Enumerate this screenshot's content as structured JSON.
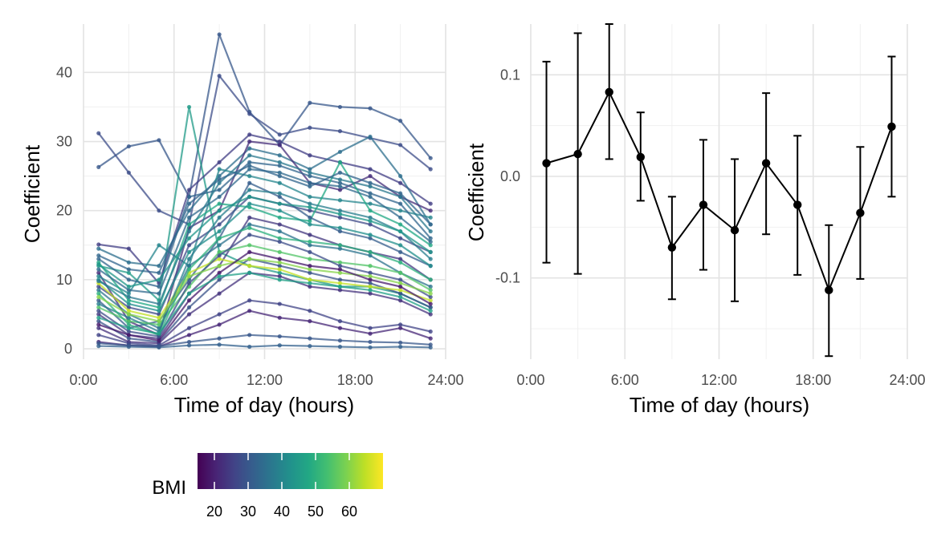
{
  "chart_data": [
    {
      "type": "line",
      "title": "",
      "xlabel": "Time of day (hours)",
      "ylabel": "Coefficient",
      "xlim": [
        0,
        24
      ],
      "ylim": [
        -1.5,
        47
      ],
      "xticks": [
        0,
        6,
        12,
        18,
        24
      ],
      "xtick_labels": [
        "0:00",
        "6:00",
        "12:00",
        "18:00",
        "24:00"
      ],
      "yticks": [
        0,
        10,
        20,
        30,
        40
      ],
      "ytick_labels": [
        "0",
        "10",
        "20",
        "30",
        "40"
      ],
      "x": [
        1,
        3,
        5,
        7,
        9,
        11,
        13,
        15,
        17,
        19,
        21,
        23
      ],
      "grid": true,
      "color_scale": "viridis",
      "color_variable": "BMI",
      "legend_position": "bottom",
      "legend": {
        "title": "BMI",
        "range": [
          15,
          70
        ],
        "ticks": [
          20,
          30,
          40,
          50,
          60
        ],
        "tick_labels": [
          "20",
          "30",
          "40",
          "50",
          "60"
        ]
      },
      "series": [
        {
          "bmi": 30,
          "values": [
            26.3,
            29.3,
            30.2,
            22.0,
            45.5,
            34.3,
            29.5,
            35.6,
            35.0,
            34.8,
            33.0,
            27.6
          ]
        },
        {
          "bmi": 28,
          "values": [
            31.2,
            25.5,
            20.0,
            18.0,
            39.5,
            34.0,
            31.0,
            32.0,
            31.5,
            30.5,
            29.5,
            26.0
          ]
        },
        {
          "bmi": 45,
          "values": [
            12.0,
            11.0,
            7.0,
            35.0,
            14.0,
            12.0,
            11.0,
            10.0,
            9.0,
            9.0,
            8.0,
            6.0
          ]
        },
        {
          "bmi": 25,
          "values": [
            15.1,
            14.5,
            9.5,
            23.0,
            27.0,
            31.0,
            30.0,
            28.0,
            27.0,
            26.0,
            24.0,
            21.0
          ]
        },
        {
          "bmi": 35,
          "values": [
            14.5,
            12.5,
            12.0,
            20.0,
            25.0,
            29.0,
            28.0,
            26.0,
            28.5,
            30.7,
            25.0,
            18.0
          ]
        },
        {
          "bmi": 22,
          "values": [
            11.0,
            4.0,
            2.0,
            17.5,
            20.0,
            30.0,
            29.5,
            24.0,
            23.0,
            25.0,
            22.0,
            20.0
          ]
        },
        {
          "bmi": 40,
          "values": [
            10.5,
            8.0,
            15.0,
            12.0,
            26.0,
            25.0,
            24.0,
            22.0,
            21.5,
            21.0,
            20.0,
            19.0
          ]
        },
        {
          "bmi": 33,
          "values": [
            13.0,
            10.0,
            9.0,
            22.0,
            23.0,
            27.0,
            26.5,
            25.0,
            24.0,
            22.5,
            21.0,
            16.0
          ]
        },
        {
          "bmi": 27,
          "values": [
            9.0,
            6.0,
            5.0,
            15.0,
            18.0,
            22.0,
            21.0,
            20.0,
            19.0,
            18.0,
            16.0,
            14.0
          ]
        },
        {
          "bmi": 48,
          "values": [
            12.5,
            7.0,
            6.0,
            18.0,
            21.0,
            20.5,
            19.0,
            18.5,
            27.0,
            20.0,
            18.0,
            15.0
          ]
        },
        {
          "bmi": 31,
          "values": [
            7.0,
            3.0,
            4.0,
            10.0,
            16.0,
            24.0,
            22.0,
            19.0,
            17.0,
            16.0,
            14.0,
            12.0
          ]
        },
        {
          "bmi": 24,
          "values": [
            5.0,
            2.0,
            1.5,
            8.0,
            12.0,
            19.0,
            18.0,
            16.5,
            15.0,
            14.0,
            13.0,
            10.0
          ]
        },
        {
          "bmi": 36,
          "values": [
            8.5,
            5.0,
            3.0,
            12.0,
            15.0,
            18.0,
            17.0,
            15.0,
            14.5,
            13.5,
            11.0,
            9.0
          ]
        },
        {
          "bmi": 55,
          "values": [
            6.0,
            4.0,
            3.5,
            9.0,
            14.0,
            15.0,
            14.0,
            13.0,
            12.5,
            12.0,
            11.0,
            8.5
          ]
        },
        {
          "bmi": 29,
          "values": [
            4.0,
            1.5,
            1.0,
            6.0,
            10.0,
            13.0,
            12.0,
            11.0,
            10.0,
            9.5,
            8.0,
            6.0
          ]
        },
        {
          "bmi": 23,
          "values": [
            3.0,
            1.0,
            0.8,
            5.0,
            8.0,
            11.0,
            10.5,
            9.0,
            8.5,
            8.0,
            7.0,
            5.0
          ]
        },
        {
          "bmi": 42,
          "values": [
            10.0,
            6.5,
            5.5,
            14.0,
            17.0,
            21.0,
            20.0,
            18.0,
            17.5,
            16.5,
            15.0,
            12.0
          ]
        },
        {
          "bmi": 65,
          "values": [
            9.5,
            5.5,
            4.5,
            11.0,
            13.0,
            12.0,
            11.5,
            10.0,
            9.5,
            9.0,
            8.5,
            7.0
          ]
        },
        {
          "bmi": 26,
          "values": [
            2.0,
            0.8,
            0.5,
            3.0,
            5.0,
            7.0,
            6.5,
            5.5,
            4.0,
            3.0,
            3.5,
            2.5
          ]
        },
        {
          "bmi": 34,
          "values": [
            11.5,
            8.5,
            8.0,
            19.0,
            22.0,
            26.0,
            25.5,
            24.0,
            23.5,
            22.0,
            19.0,
            15.5
          ]
        },
        {
          "bmi": 21,
          "values": [
            1.0,
            0.5,
            0.3,
            2.0,
            3.5,
            5.5,
            4.5,
            4.0,
            3.0,
            2.2,
            3.0,
            1.5
          ]
        },
        {
          "bmi": 38,
          "values": [
            6.5,
            4.5,
            2.5,
            13.0,
            19.0,
            23.0,
            22.5,
            21.0,
            20.0,
            19.0,
            17.0,
            13.0
          ]
        },
        {
          "bmi": 50,
          "values": [
            8.0,
            3.5,
            2.0,
            11.5,
            16.0,
            17.5,
            16.0,
            15.5,
            15.0,
            14.0,
            12.5,
            10.0
          ]
        },
        {
          "bmi": 32,
          "values": [
            0.4,
            0.3,
            0.2,
            0.5,
            0.6,
            0.3,
            0.5,
            0.4,
            0.3,
            0.2,
            0.3,
            0.2
          ]
        },
        {
          "bmi": 28,
          "values": [
            5.5,
            2.5,
            1.8,
            9.5,
            13.5,
            16.5,
            15.5,
            14.0,
            12.0,
            11.0,
            10.0,
            7.5
          ]
        },
        {
          "bmi": 44,
          "values": [
            12.2,
            9.0,
            10.0,
            16.0,
            20.0,
            22.0,
            21.0,
            20.5,
            19.5,
            18.5,
            17.0,
            14.0
          ]
        },
        {
          "bmi": 60,
          "values": [
            7.5,
            5.0,
            4.0,
            10.5,
            12.0,
            13.0,
            12.5,
            11.5,
            11.0,
            10.5,
            9.5,
            8.0
          ]
        },
        {
          "bmi": 37,
          "values": [
            9.8,
            7.5,
            6.5,
            17.0,
            24.0,
            28.0,
            27.0,
            25.5,
            24.5,
            23.5,
            22.0,
            17.0
          ]
        },
        {
          "bmi": 19,
          "values": [
            3.5,
            2.0,
            1.2,
            7.0,
            11.0,
            14.0,
            13.0,
            12.0,
            11.5,
            10.0,
            9.0,
            6.5
          ]
        },
        {
          "bmi": 46,
          "values": [
            4.5,
            3.0,
            2.2,
            8.0,
            10.5,
            11.0,
            10.0,
            9.5,
            9.0,
            8.5,
            7.5,
            5.5
          ]
        },
        {
          "bmi": 30,
          "values": [
            0.8,
            0.5,
            0.4,
            1.0,
            1.5,
            2.0,
            1.8,
            1.5,
            1.2,
            1.0,
            0.9,
            0.6
          ]
        },
        {
          "bmi": 33,
          "values": [
            13.5,
            11.5,
            11.0,
            21.0,
            24.5,
            26.5,
            25.0,
            23.5,
            25.5,
            24.0,
            22.5,
            18.0
          ]
        }
      ]
    },
    {
      "type": "line",
      "title": "",
      "xlabel": "Time of day (hours)",
      "ylabel": "Coefficient",
      "xlim": [
        0,
        24
      ],
      "ylim": [
        -0.18,
        0.15
      ],
      "xticks": [
        0,
        6,
        12,
        18,
        24
      ],
      "xtick_labels": [
        "0:00",
        "6:00",
        "12:00",
        "18:00",
        "24:00"
      ],
      "yticks": [
        -0.1,
        0.0,
        0.1
      ],
      "ytick_labels": [
        "-0.1",
        "0.0",
        "0.1"
      ],
      "grid": true,
      "error_bars": true,
      "x": [
        1,
        3,
        5,
        7,
        9,
        11,
        13,
        15,
        17,
        19,
        21,
        23
      ],
      "values": [
        0.013,
        0.022,
        0.083,
        0.019,
        -0.07,
        -0.028,
        -0.053,
        0.013,
        -0.028,
        -0.112,
        -0.036,
        0.049
      ],
      "lower": [
        -0.085,
        -0.096,
        0.017,
        -0.024,
        -0.121,
        -0.092,
        -0.123,
        -0.057,
        -0.097,
        -0.177,
        -0.101,
        -0.02
      ],
      "upper": [
        0.113,
        0.141,
        0.15,
        0.063,
        -0.02,
        0.036,
        0.017,
        0.082,
        0.04,
        -0.048,
        0.029,
        0.118
      ]
    }
  ]
}
